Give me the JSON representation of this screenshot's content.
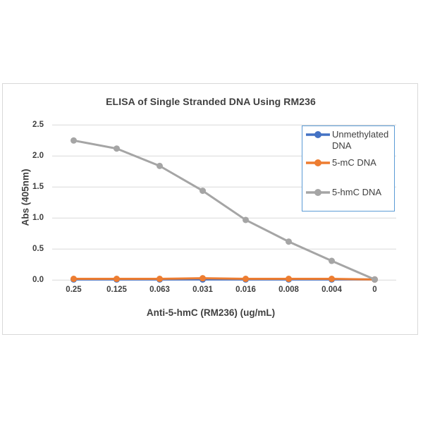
{
  "chart_data": {
    "type": "line",
    "title": "ELISA of Single Stranded DNA Using RM236",
    "xlabel": "Anti-5-hmC (RM236) (ug/mL)",
    "ylabel": "Abs (405nm)",
    "categories": [
      "0.25",
      "0.125",
      "0.063",
      "0.031",
      "0.016",
      "0.008",
      "0.004",
      "0"
    ],
    "y_ticks": [
      "0.0",
      "0.5",
      "1.0",
      "1.5",
      "2.0",
      "2.5"
    ],
    "ylim": [
      0,
      2.5
    ],
    "grid": true,
    "gridline_color": "#d9d9d9",
    "frame_border_color": "#d9d9d9",
    "text_color": "#404040",
    "legend_position": "inside-top-right",
    "legend_border_color": "#5b9bd5",
    "series": [
      {
        "name": "Unmethylated DNA",
        "color": "#4472C4",
        "values": [
          0.01,
          0.01,
          0.01,
          0.01,
          0.01,
          0.01,
          0.01,
          0.01
        ]
      },
      {
        "name": "5-mC DNA",
        "color": "#ED7D31",
        "values": [
          0.02,
          0.02,
          0.02,
          0.03,
          0.02,
          0.02,
          0.02,
          0.01
        ]
      },
      {
        "name": "5-hmC DNA",
        "color": "#A5A5A5",
        "values": [
          2.25,
          2.12,
          1.84,
          1.44,
          0.97,
          0.62,
          0.31,
          0.01
        ]
      }
    ]
  }
}
